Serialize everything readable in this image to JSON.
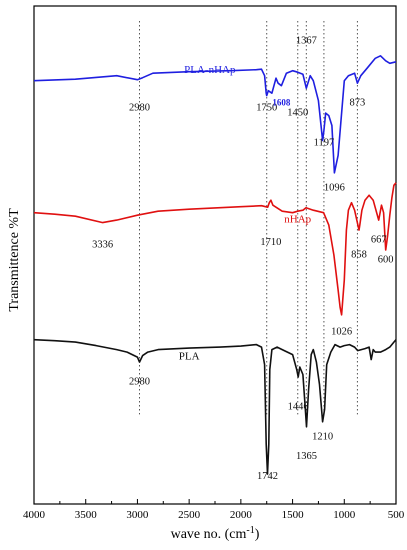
{
  "chart_data": {
    "type": "line",
    "title": "",
    "xlabel": "wave no. (cm",
    "xlabel_sup": "-1",
    "xlabel_close": ")",
    "ylabel": "Transmittence %T",
    "x_reversed": true,
    "xlim": [
      4000,
      500
    ],
    "xticks": [
      4000,
      3500,
      3000,
      2500,
      2000,
      1500,
      1000,
      500
    ],
    "y_tick_labels_shown": false,
    "grid": false,
    "reference_lines_x": [
      2980,
      1750,
      1450,
      1367,
      1197,
      873
    ],
    "series": [
      {
        "name": "PLA-nHAp",
        "color": "#1f1fe0",
        "points": [
          [
            4000,
            85
          ],
          [
            3600,
            85.3
          ],
          [
            3200,
            86
          ],
          [
            3000,
            85.2
          ],
          [
            2950,
            85.6
          ],
          [
            2850,
            86.5
          ],
          [
            2500,
            86.8
          ],
          [
            2100,
            87
          ],
          [
            1850,
            87.2
          ],
          [
            1800,
            87.3
          ],
          [
            1770,
            86
          ],
          [
            1755,
            82.5
          ],
          [
            1750,
            82
          ],
          [
            1735,
            83
          ],
          [
            1700,
            82.5
          ],
          [
            1660,
            85.5
          ],
          [
            1640,
            84.5
          ],
          [
            1608,
            84
          ],
          [
            1560,
            86.5
          ],
          [
            1500,
            87
          ],
          [
            1450,
            86.7
          ],
          [
            1400,
            86.3
          ],
          [
            1367,
            83.5
          ],
          [
            1330,
            86
          ],
          [
            1300,
            85
          ],
          [
            1250,
            81
          ],
          [
            1210,
            73
          ],
          [
            1197,
            75
          ],
          [
            1180,
            78.5
          ],
          [
            1150,
            78
          ],
          [
            1120,
            76
          ],
          [
            1096,
            66.5
          ],
          [
            1060,
            70
          ],
          [
            1000,
            85
          ],
          [
            960,
            86
          ],
          [
            900,
            86.5
          ],
          [
            873,
            84.5
          ],
          [
            840,
            86
          ],
          [
            780,
            87.5
          ],
          [
            700,
            89.5
          ],
          [
            650,
            90
          ],
          [
            600,
            89
          ],
          [
            560,
            88.5
          ],
          [
            500,
            88.8
          ]
        ]
      },
      {
        "name": "nHAp",
        "color": "#e01010",
        "points": [
          [
            4000,
            58.5
          ],
          [
            3800,
            58.2
          ],
          [
            3600,
            57.8
          ],
          [
            3336,
            56.5
          ],
          [
            3200,
            57
          ],
          [
            3000,
            58
          ],
          [
            2800,
            58.8
          ],
          [
            2500,
            59.2
          ],
          [
            2200,
            59.5
          ],
          [
            2000,
            59.7
          ],
          [
            1800,
            59.9
          ],
          [
            1740,
            59.6
          ],
          [
            1725,
            60.5
          ],
          [
            1710,
            61
          ],
          [
            1690,
            60
          ],
          [
            1600,
            58.8
          ],
          [
            1500,
            58.5
          ],
          [
            1450,
            58.8
          ],
          [
            1400,
            59
          ],
          [
            1370,
            59.5
          ],
          [
            1300,
            59
          ],
          [
            1200,
            58.5
          ],
          [
            1150,
            56
          ],
          [
            1100,
            50
          ],
          [
            1060,
            43
          ],
          [
            1040,
            39.5
          ],
          [
            1026,
            38
          ],
          [
            1000,
            45
          ],
          [
            980,
            55
          ],
          [
            960,
            59
          ],
          [
            930,
            60.5
          ],
          [
            900,
            59
          ],
          [
            858,
            55
          ],
          [
            850,
            56
          ],
          [
            830,
            59
          ],
          [
            800,
            61
          ],
          [
            760,
            62
          ],
          [
            720,
            61
          ],
          [
            667,
            57
          ],
          [
            640,
            60
          ],
          [
            620,
            58.5
          ],
          [
            600,
            51
          ],
          [
            580,
            54
          ],
          [
            560,
            58
          ],
          [
            540,
            61.5
          ],
          [
            520,
            64
          ],
          [
            500,
            64.5
          ]
        ]
      },
      {
        "name": "PLA",
        "color": "#111111",
        "points": [
          [
            4000,
            33
          ],
          [
            3800,
            32.8
          ],
          [
            3600,
            32.5
          ],
          [
            3400,
            31.8
          ],
          [
            3200,
            31
          ],
          [
            3100,
            30.5
          ],
          [
            3000,
            29.5
          ],
          [
            2980,
            28.5
          ],
          [
            2950,
            29.8
          ],
          [
            2900,
            30.5
          ],
          [
            2800,
            31
          ],
          [
            2500,
            31.3
          ],
          [
            2200,
            31.5
          ],
          [
            2000,
            31.7
          ],
          [
            1850,
            32
          ],
          [
            1800,
            31.5
          ],
          [
            1770,
            28
          ],
          [
            1755,
            12
          ],
          [
            1742,
            6
          ],
          [
            1730,
            12
          ],
          [
            1720,
            27
          ],
          [
            1700,
            31
          ],
          [
            1650,
            31.5
          ],
          [
            1600,
            31
          ],
          [
            1550,
            30.5
          ],
          [
            1500,
            30
          ],
          [
            1460,
            27
          ],
          [
            1446,
            25.5
          ],
          [
            1430,
            27.5
          ],
          [
            1400,
            26
          ],
          [
            1380,
            20
          ],
          [
            1365,
            15.5
          ],
          [
            1345,
            23
          ],
          [
            1320,
            30
          ],
          [
            1300,
            31
          ],
          [
            1270,
            28.5
          ],
          [
            1240,
            24
          ],
          [
            1210,
            16.5
          ],
          [
            1190,
            19
          ],
          [
            1170,
            28
          ],
          [
            1130,
            30.5
          ],
          [
            1090,
            32
          ],
          [
            1040,
            31.5
          ],
          [
            1000,
            31.8
          ],
          [
            950,
            32
          ],
          [
            900,
            31.5
          ],
          [
            870,
            30.8
          ],
          [
            800,
            31.2
          ],
          [
            760,
            31.5
          ],
          [
            740,
            29
          ],
          [
            720,
            31
          ],
          [
            700,
            30.5
          ],
          [
            650,
            30.5
          ],
          [
            600,
            31
          ],
          [
            560,
            31.5
          ],
          [
            520,
            32.5
          ],
          [
            500,
            33
          ]
        ]
      }
    ],
    "peak_labels": [
      {
        "text": "2980",
        "x": 2980,
        "y": 79,
        "color": "#111111"
      },
      {
        "text": "1750",
        "x": 1750,
        "y": 79,
        "color": "#111111"
      },
      {
        "text": "1608",
        "x": 1608,
        "y": 80,
        "color": "#1f1fe0"
      },
      {
        "text": "1450",
        "x": 1450,
        "y": 78,
        "color": "#111111"
      },
      {
        "text": "1367",
        "x": 1367,
        "y": 92.5,
        "color": "#111111"
      },
      {
        "text": "1197",
        "x": 1197,
        "y": 72,
        "color": "#111111"
      },
      {
        "text": "1096",
        "x": 1096,
        "y": 63,
        "color": "#111111"
      },
      {
        "text": "873",
        "x": 873,
        "y": 80,
        "color": "#111111"
      },
      {
        "text": "3336",
        "x": 3336,
        "y": 51.5,
        "color": "#111111"
      },
      {
        "text": "1710",
        "x": 1710,
        "y": 52,
        "color": "#111111"
      },
      {
        "text": "858",
        "x": 858,
        "y": 49.5,
        "color": "#111111"
      },
      {
        "text": "667",
        "x": 667,
        "y": 52.5,
        "color": "#111111"
      },
      {
        "text": "600",
        "x": 600,
        "y": 48.5,
        "color": "#111111"
      },
      {
        "text": "1026",
        "x": 1026,
        "y": 34,
        "color": "#111111"
      },
      {
        "text": "2980",
        "x": 2980,
        "y": 24,
        "color": "#111111"
      },
      {
        "text": "1446",
        "x": 1446,
        "y": 19,
        "color": "#111111"
      },
      {
        "text": "1742",
        "x": 1742,
        "y": 5,
        "color": "#111111"
      },
      {
        "text": "1365",
        "x": 1365,
        "y": 9,
        "color": "#111111"
      },
      {
        "text": "1210",
        "x": 1210,
        "y": 13,
        "color": "#111111"
      }
    ],
    "series_labels": [
      {
        "text": "PLA-nHAp",
        "x": 2300,
        "y": 86.5,
        "color": "#1f1fe0"
      },
      {
        "text": "nHAp",
        "x": 1450,
        "y": 56.5,
        "color": "#e01010"
      },
      {
        "text": "PLA",
        "x": 2500,
        "y": 29,
        "color": "#111111"
      }
    ]
  }
}
